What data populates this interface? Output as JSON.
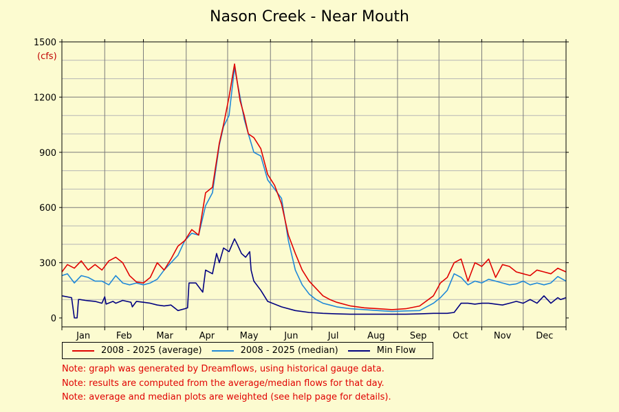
{
  "chart_data": {
    "type": "line",
    "title": "Nason Creek - Near Mouth",
    "ylabel_unit": "(cfs)",
    "ylim": [
      0,
      1500
    ],
    "yticks": [
      0,
      300,
      600,
      900,
      1200,
      1500
    ],
    "xlim": [
      1,
      366
    ],
    "months": [
      "Jan",
      "Feb",
      "Mar",
      "Apr",
      "May",
      "Jun",
      "Jul",
      "Aug",
      "Sep",
      "Oct",
      "Nov",
      "Dec"
    ],
    "grid": true,
    "legend_position": "bottom",
    "series": [
      {
        "name": "2008 - 2025 (average)",
        "color": "#e00000",
        "day": [
          1,
          5,
          10,
          15,
          20,
          25,
          30,
          35,
          40,
          45,
          50,
          55,
          60,
          65,
          70,
          75,
          80,
          85,
          90,
          95,
          100,
          105,
          110,
          115,
          118,
          122,
          126,
          130,
          133,
          136,
          140,
          145,
          150,
          155,
          160,
          165,
          170,
          175,
          180,
          185,
          190,
          195,
          200,
          210,
          220,
          230,
          240,
          250,
          260,
          270,
          275,
          280,
          285,
          290,
          295,
          300,
          305,
          310,
          315,
          320,
          325,
          330,
          335,
          340,
          345,
          350,
          355,
          360,
          366
        ],
        "values": [
          250,
          290,
          270,
          310,
          260,
          290,
          260,
          310,
          330,
          300,
          230,
          195,
          190,
          220,
          300,
          260,
          320,
          390,
          420,
          480,
          450,
          680,
          710,
          950,
          1050,
          1200,
          1380,
          1180,
          1100,
          1000,
          980,
          920,
          780,
          720,
          620,
          450,
          350,
          260,
          200,
          160,
          120,
          100,
          85,
          65,
          55,
          50,
          45,
          50,
          65,
          120,
          190,
          220,
          300,
          320,
          200,
          300,
          280,
          320,
          220,
          290,
          280,
          250,
          240,
          230,
          260,
          250,
          240,
          270,
          250
        ]
      },
      {
        "name": "2008 - 2025 (median)",
        "color": "#1e88d8",
        "day": [
          1,
          5,
          10,
          15,
          20,
          25,
          30,
          35,
          40,
          45,
          50,
          55,
          60,
          65,
          70,
          75,
          80,
          85,
          90,
          95,
          100,
          105,
          110,
          115,
          118,
          122,
          126,
          130,
          133,
          136,
          140,
          145,
          150,
          155,
          160,
          165,
          170,
          175,
          180,
          185,
          190,
          195,
          200,
          210,
          220,
          230,
          240,
          250,
          260,
          270,
          275,
          280,
          285,
          290,
          295,
          300,
          305,
          310,
          315,
          320,
          325,
          330,
          335,
          340,
          345,
          350,
          355,
          360,
          366
        ],
        "values": [
          230,
          240,
          190,
          230,
          220,
          200,
          200,
          180,
          230,
          190,
          180,
          190,
          180,
          190,
          210,
          260,
          300,
          340,
          420,
          460,
          450,
          610,
          680,
          940,
          1040,
          1100,
          1360,
          1200,
          1080,
          1000,
          900,
          880,
          750,
          700,
          650,
          420,
          260,
          180,
          130,
          100,
          80,
          70,
          60,
          50,
          45,
          40,
          35,
          38,
          40,
          80,
          110,
          150,
          240,
          220,
          180,
          200,
          190,
          210,
          200,
          190,
          180,
          185,
          200,
          180,
          190,
          180,
          190,
          225,
          200
        ]
      },
      {
        "name": "Min Flow",
        "color": "#000080",
        "day": [
          1,
          8,
          10,
          12,
          13,
          14,
          18,
          25,
          30,
          32,
          33,
          38,
          40,
          45,
          48,
          51,
          52,
          55,
          60,
          65,
          70,
          75,
          80,
          85,
          90,
          92,
          93,
          98,
          103,
          105,
          110,
          113,
          115,
          118,
          122,
          126,
          128,
          131,
          134,
          137,
          138,
          140,
          145,
          150,
          160,
          170,
          180,
          190,
          200,
          210,
          220,
          230,
          240,
          250,
          260,
          270,
          280,
          285,
          290,
          295,
          300,
          305,
          310,
          315,
          320,
          325,
          330,
          335,
          340,
          345,
          350,
          355,
          360,
          362,
          366
        ],
        "values": [
          120,
          110,
          0,
          0,
          100,
          100,
          95,
          90,
          80,
          115,
          75,
          90,
          80,
          95,
          90,
          85,
          60,
          90,
          85,
          80,
          70,
          65,
          70,
          40,
          50,
          55,
          190,
          190,
          140,
          260,
          240,
          350,
          300,
          380,
          360,
          430,
          400,
          350,
          330,
          360,
          260,
          200,
          150,
          90,
          60,
          40,
          30,
          25,
          22,
          20,
          20,
          20,
          20,
          20,
          22,
          25,
          25,
          30,
          80,
          80,
          75,
          80,
          80,
          75,
          70,
          80,
          90,
          80,
          100,
          80,
          120,
          80,
          110,
          100,
          110
        ]
      }
    ]
  },
  "notes": [
    "Note: graph was generated by Dreamflows, using historical gauge data.",
    "Note: results are computed from the average/median flows for that day.",
    "Note: average and median plots are weighted (see help page for details)."
  ]
}
